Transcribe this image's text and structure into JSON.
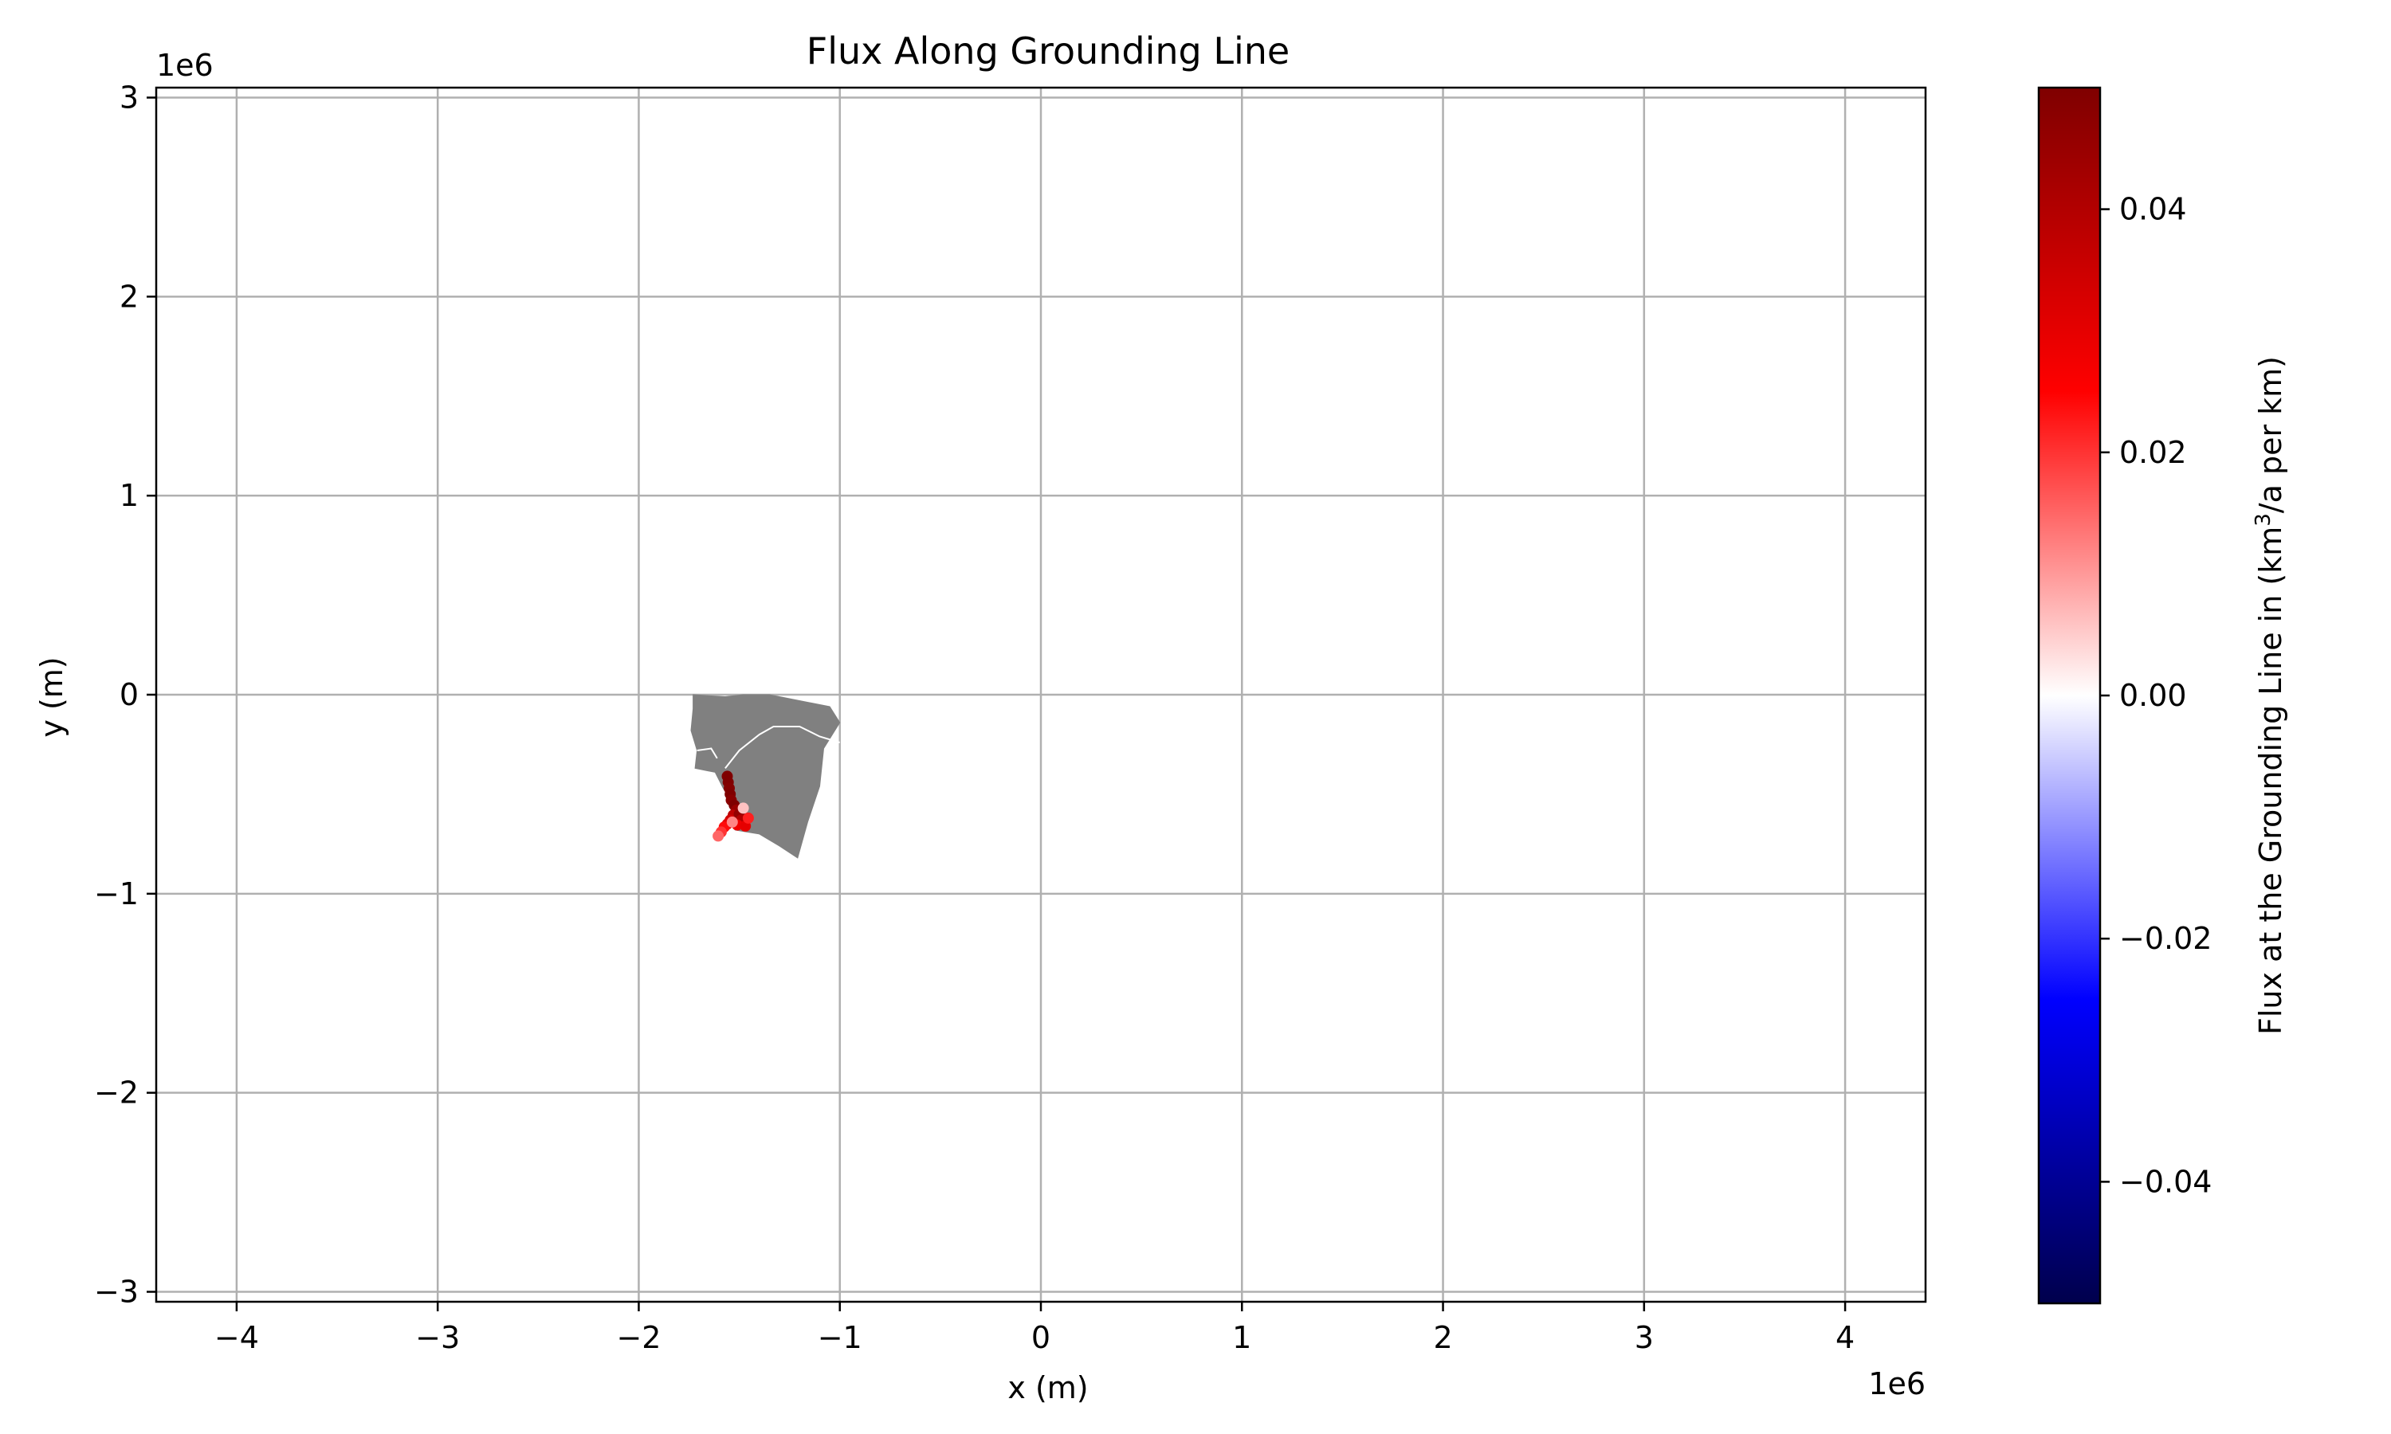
{
  "chart_data": {
    "type": "scatter",
    "title": "Flux Along Grounding Line",
    "xlabel": "x (m)",
    "ylabel": "y (m)",
    "x_offset_label": "1e6",
    "y_offset_label": "1e6",
    "xlim": [
      -4.4,
      4.4
    ],
    "ylim": [
      -3.05,
      3.05
    ],
    "x_ticks": [
      -4,
      -3,
      -2,
      -1,
      0,
      1,
      2,
      3,
      4
    ],
    "x_tick_labels": [
      "−4",
      "−3",
      "−2",
      "−1",
      "0",
      "1",
      "2",
      "3",
      "4"
    ],
    "y_ticks": [
      3,
      2,
      1,
      0,
      -1,
      -2,
      -3
    ],
    "y_tick_labels": [
      "3",
      "2",
      "1",
      "0",
      "−1",
      "−2",
      "−3"
    ],
    "grid": true,
    "land_region": {
      "name": "",
      "color": "#808080",
      "outline": [
        [
          -1.73,
          0.0
        ],
        [
          -1.57,
          -0.01
        ],
        [
          -1.48,
          0.0
        ],
        [
          -1.35,
          0.0
        ],
        [
          -1.05,
          -0.06
        ],
        [
          -1.0,
          -0.14
        ],
        [
          -1.08,
          -0.27
        ],
        [
          -1.1,
          -0.46
        ],
        [
          -1.16,
          -0.64
        ],
        [
          -1.21,
          -0.82
        ],
        [
          -1.3,
          -0.76
        ],
        [
          -1.4,
          -0.7
        ],
        [
          -1.52,
          -0.68
        ],
        [
          -1.56,
          -0.63
        ],
        [
          -1.53,
          -0.55
        ],
        [
          -1.58,
          -0.47
        ],
        [
          -1.62,
          -0.39
        ],
        [
          -1.72,
          -0.37
        ],
        [
          -1.71,
          -0.28
        ],
        [
          -1.74,
          -0.18
        ],
        [
          -1.73,
          -0.07
        ]
      ],
      "boundaries": [
        [
          [
            -1.57,
            -0.37
          ],
          [
            -1.5,
            -0.28
          ],
          [
            -1.4,
            -0.2
          ],
          [
            -1.33,
            -0.16
          ],
          [
            -1.2,
            -0.16
          ],
          [
            -1.1,
            -0.21
          ],
          [
            -1.0,
            -0.24
          ]
        ],
        [
          [
            -1.71,
            -0.28
          ],
          [
            -1.64,
            -0.27
          ],
          [
            -1.61,
            -0.32
          ]
        ]
      ]
    },
    "colorbar": {
      "label": "Flux at the Grounding Line in (km³/a per km)",
      "label_parts": [
        "Flux at the Grounding Line in (km",
        "3",
        "/a per km)"
      ],
      "vmin": -0.05,
      "vmax": 0.05,
      "ticks": [
        0.04,
        0.02,
        0.0,
        -0.02,
        -0.04
      ],
      "tick_labels": [
        "0.04",
        "0.02",
        "0.00",
        "−0.02",
        "−0.04"
      ],
      "colormap": "seismic",
      "colors": [
        "#00004c",
        "#0000ff",
        "#ffffff",
        "#ff0000",
        "#7f0000"
      ]
    },
    "points": [
      {
        "x": -1.56,
        "y": -0.41,
        "v": 0.05
      },
      {
        "x": -1.555,
        "y": -0.44,
        "v": 0.05
      },
      {
        "x": -1.55,
        "y": -0.47,
        "v": 0.049
      },
      {
        "x": -1.545,
        "y": -0.5,
        "v": 0.05
      },
      {
        "x": -1.54,
        "y": -0.53,
        "v": 0.048
      },
      {
        "x": -1.525,
        "y": -0.555,
        "v": 0.05
      },
      {
        "x": -1.515,
        "y": -0.58,
        "v": 0.045
      },
      {
        "x": -1.53,
        "y": -0.605,
        "v": 0.038
      },
      {
        "x": -1.545,
        "y": -0.63,
        "v": 0.034
      },
      {
        "x": -1.56,
        "y": -0.65,
        "v": 0.03
      },
      {
        "x": -1.575,
        "y": -0.665,
        "v": 0.024
      },
      {
        "x": -1.59,
        "y": -0.69,
        "v": 0.02
      },
      {
        "x": -1.605,
        "y": -0.71,
        "v": 0.015
      },
      {
        "x": -1.5,
        "y": -0.6,
        "v": 0.046
      },
      {
        "x": -1.49,
        "y": -0.63,
        "v": 0.04
      },
      {
        "x": -1.51,
        "y": -0.655,
        "v": 0.028
      },
      {
        "x": -1.535,
        "y": -0.64,
        "v": 0.012
      },
      {
        "x": -1.47,
        "y": -0.66,
        "v": 0.03
      },
      {
        "x": -1.455,
        "y": -0.62,
        "v": 0.022
      },
      {
        "x": -1.48,
        "y": -0.57,
        "v": 0.006
      }
    ]
  }
}
